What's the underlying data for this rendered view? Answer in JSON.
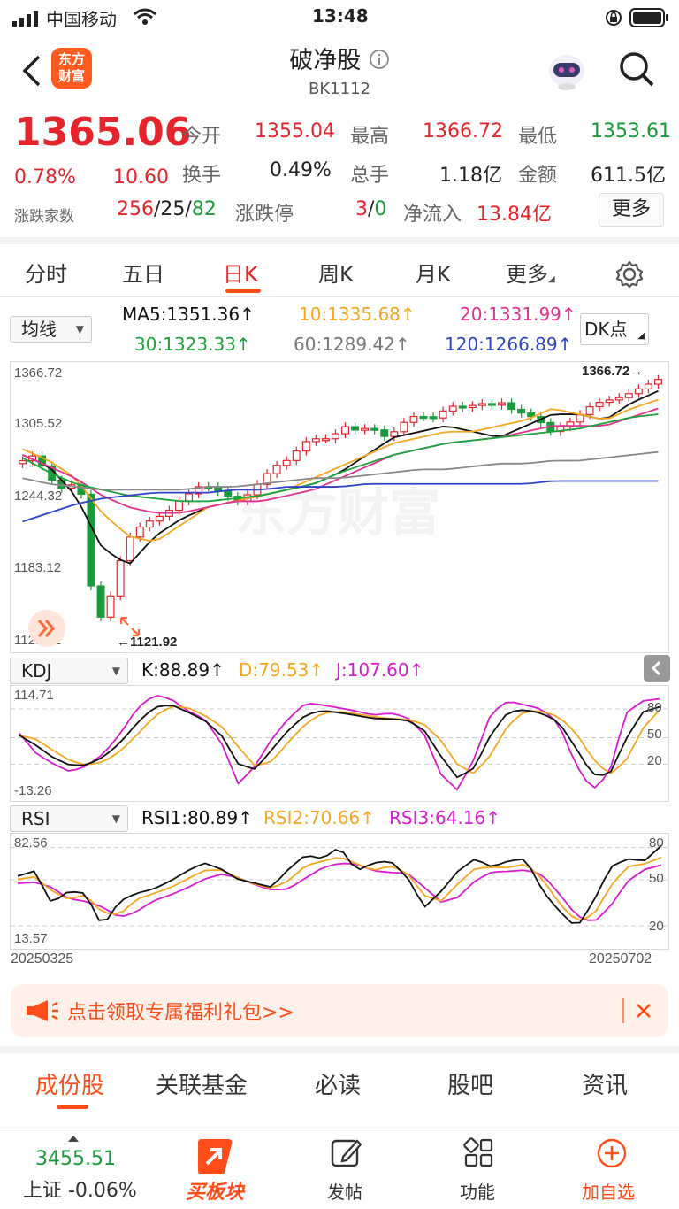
{
  "status_bar": {
    "carrier": "中国移动",
    "time": "13:48"
  },
  "header": {
    "title": "破净股",
    "code": "BK1112",
    "logo_text_line1": "东方",
    "logo_text_line2": "财富"
  },
  "quote": {
    "price": "1365.06",
    "change_pct": "0.78%",
    "change": "10.60",
    "adv_dec_label": "涨跌家数",
    "adv": "256",
    "flat": "25",
    "dec": "82",
    "open_label": "今开",
    "open": "1355.04",
    "high_label": "最高",
    "high": "1366.72",
    "low_label": "最低",
    "low": "1353.61",
    "turnover_label": "换手",
    "turnover": "0.49%",
    "volume_label": "总手",
    "volume": "1.18亿",
    "amount_label": "金额",
    "amount": "611.5亿",
    "limit_label": "涨跌停",
    "limit_up": "3",
    "limit_down": "0",
    "inflow_label": "净流入",
    "inflow": "13.84亿",
    "more_label": "更多"
  },
  "period_tabs": [
    "分时",
    "五日",
    "日K",
    "周K",
    "月K",
    "更多"
  ],
  "ma_bar": {
    "selector": "均线",
    "ma5": "MA5:1351.36",
    "ma10": "10:1335.68",
    "ma20": "20:1331.99",
    "ma30": "30:1323.33",
    "ma60": "60:1289.42",
    "ma120": "120:1266.89",
    "dk_label": "DK点"
  },
  "colors": {
    "up": "#e5242b",
    "down": "#1a9a3a",
    "ma5": "#111111",
    "ma10": "#f5a623",
    "ma20": "#e0338f",
    "ma30": "#1aa33a",
    "ma60": "#888888",
    "ma120": "#2d44c9",
    "accent": "#ff4d1a"
  },
  "chart_data": {
    "type": "candlestick",
    "y_ticks": [
      "1366.72",
      "1305.52",
      "1244.32",
      "1183.12",
      "1121.92"
    ],
    "ylim": [
      1121.92,
      1366.72
    ],
    "high_marker": "1366.72",
    "low_marker": "1121.92",
    "x_start": "20250325",
    "x_end": "20250702",
    "watermark": "东方财富"
  },
  "kdj": {
    "selector": "KDJ",
    "k": "K:88.89",
    "d": "D:79.53",
    "j": "J:107.60",
    "y_top": "114.71",
    "y_bottom": "-13.26",
    "lvl80": "80",
    "lvl50": "50",
    "lvl20": "20"
  },
  "rsi": {
    "selector": "RSI",
    "rsi1": "RSI1:80.89",
    "rsi2": "RSI2:70.66",
    "rsi3": "RSI3:64.16",
    "y_top": "82.56",
    "y_bottom": "13.57",
    "lvl80": "80",
    "lvl50": "50",
    "lvl20": "20"
  },
  "promo": {
    "text": "点击领取专属福利礼包>>"
  },
  "content_tabs": [
    "成份股",
    "关联基金",
    "必读",
    "股吧",
    "资讯"
  ],
  "bottom_bar": {
    "index_value": "3455.51",
    "index_label": "上证 -0.06%",
    "buy_label": "买板块",
    "post_label": "发帖",
    "func_label": "功能",
    "add_label": "加自选"
  }
}
